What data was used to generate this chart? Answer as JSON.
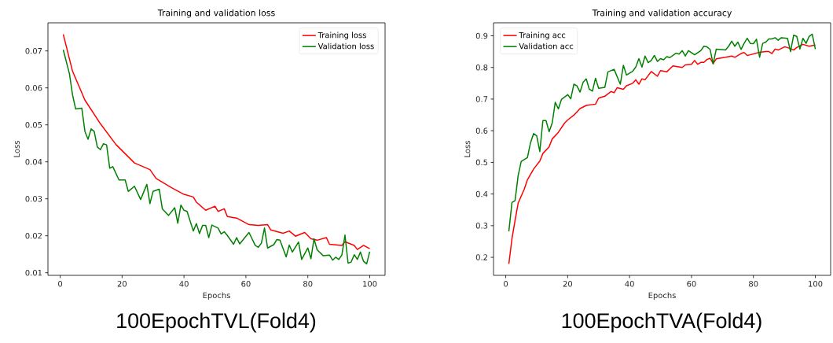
{
  "chart_data": [
    {
      "type": "line",
      "title": "Training and validation loss",
      "xlabel": "Epochs",
      "ylabel": "Loss",
      "legend": "top right",
      "xlim": [
        -3.95,
        104.95
      ],
      "ylim": [
        0.0093,
        0.0776
      ],
      "xticks": [
        0,
        20,
        40,
        60,
        80,
        100
      ],
      "yticks": [
        0.01,
        0.02,
        0.03,
        0.04,
        0.05,
        0.06,
        0.07
      ],
      "annotations": [
        "100EpochTVL(Fold4)"
      ],
      "series": [
        {
          "name": "Training loss",
          "color": "#ff0000",
          "x": [
            1,
            4,
            8,
            13,
            18,
            24,
            29,
            31,
            36,
            40,
            43,
            44,
            47,
            50,
            51,
            53,
            54,
            57,
            61,
            64,
            67,
            68,
            72,
            74,
            76,
            79,
            81,
            83,
            86,
            87,
            91,
            92,
            95,
            96,
            98,
            100
          ],
          "values": [
            0.0745,
            0.0645,
            0.0567,
            0.0503,
            0.0447,
            0.0397,
            0.0379,
            0.0355,
            0.033,
            0.0312,
            0.0305,
            0.0291,
            0.0269,
            0.028,
            0.0266,
            0.0273,
            0.0252,
            0.0248,
            0.023,
            0.0228,
            0.023,
            0.0216,
            0.0207,
            0.0213,
            0.0199,
            0.0209,
            0.0192,
            0.0188,
            0.0195,
            0.0177,
            0.0174,
            0.0184,
            0.0174,
            0.0163,
            0.0174,
            0.0165
          ]
        },
        {
          "name": "Validation loss",
          "color": "#008000",
          "x": [
            1,
            3,
            4,
            5,
            7,
            8,
            9,
            10,
            11,
            12,
            13,
            14,
            15,
            16,
            17,
            19,
            21,
            22,
            24,
            26,
            28,
            29,
            30,
            32,
            33,
            35,
            37,
            38,
            39,
            40,
            41,
            43,
            44,
            45,
            46,
            47,
            48,
            49,
            51,
            52,
            53,
            54,
            56,
            57,
            58,
            61,
            63,
            64,
            65,
            66,
            67,
            69,
            70,
            71,
            73,
            74,
            75,
            77,
            78,
            80,
            81,
            82,
            83,
            85,
            87,
            88,
            89,
            90,
            91,
            92,
            93,
            94,
            95,
            96,
            97,
            98,
            99,
            100
          ],
          "values": [
            0.0703,
            0.0638,
            0.0581,
            0.0543,
            0.0545,
            0.0482,
            0.0461,
            0.0489,
            0.0482,
            0.044,
            0.0433,
            0.0449,
            0.0446,
            0.0383,
            0.0387,
            0.0351,
            0.0351,
            0.032,
            0.0334,
            0.0298,
            0.0339,
            0.0287,
            0.032,
            0.0326,
            0.0273,
            0.0255,
            0.0276,
            0.0234,
            0.0283,
            0.0269,
            0.0266,
            0.0213,
            0.0233,
            0.0206,
            0.0228,
            0.0228,
            0.0195,
            0.0229,
            0.0221,
            0.0205,
            0.0211,
            0.0201,
            0.0177,
            0.0195,
            0.0178,
            0.0209,
            0.0174,
            0.0169,
            0.018,
            0.0221,
            0.0167,
            0.0176,
            0.019,
            0.0188,
            0.0143,
            0.0175,
            0.0156,
            0.0183,
            0.0136,
            0.0167,
            0.0138,
            0.0192,
            0.0162,
            0.0146,
            0.0148,
            0.0134,
            0.0142,
            0.0136,
            0.0148,
            0.0202,
            0.0126,
            0.0129,
            0.0149,
            0.0136,
            0.0156,
            0.0131,
            0.0124,
            0.0157
          ]
        }
      ]
    },
    {
      "type": "line",
      "title": "Training and validation accuracy",
      "xlabel": "Epochs",
      "ylabel": "Loss",
      "legend": "top left",
      "xlim": [
        -3.95,
        104.95
      ],
      "ylim": [
        0.143,
        0.941
      ],
      "xticks": [
        0,
        20,
        40,
        60,
        80,
        100
      ],
      "yticks": [
        0.2,
        0.3,
        0.4,
        0.5,
        0.6,
        0.7,
        0.8,
        0.9
      ],
      "annotations": [
        "100EpochTVA(Fold4)"
      ],
      "series": [
        {
          "name": "Training acc",
          "color": "#ff0000",
          "x": [
            1,
            2,
            3,
            4,
            6,
            7,
            9,
            11,
            12,
            14,
            15,
            17,
            19,
            20,
            22,
            24,
            26,
            29,
            30,
            32,
            34,
            35,
            36,
            38,
            39,
            41,
            42,
            43,
            44,
            45,
            47,
            49,
            50,
            52,
            54,
            57,
            58,
            60,
            61,
            62,
            63,
            64,
            65,
            66,
            67,
            68,
            71,
            73,
            74,
            76,
            77,
            78,
            79,
            82,
            84,
            85,
            86,
            87,
            88,
            90,
            91,
            93,
            94,
            96,
            98,
            100
          ],
          "values": [
            0.179,
            0.258,
            0.316,
            0.371,
            0.416,
            0.445,
            0.479,
            0.504,
            0.528,
            0.549,
            0.574,
            0.595,
            0.624,
            0.634,
            0.649,
            0.67,
            0.68,
            0.684,
            0.703,
            0.709,
            0.724,
            0.72,
            0.736,
            0.731,
            0.742,
            0.75,
            0.761,
            0.747,
            0.764,
            0.761,
            0.787,
            0.772,
            0.79,
            0.786,
            0.805,
            0.8,
            0.808,
            0.81,
            0.822,
            0.81,
            0.816,
            0.816,
            0.825,
            0.829,
            0.813,
            0.827,
            0.832,
            0.836,
            0.832,
            0.844,
            0.847,
            0.838,
            0.84,
            0.848,
            0.85,
            0.85,
            0.844,
            0.858,
            0.855,
            0.865,
            0.863,
            0.855,
            0.863,
            0.873,
            0.867,
            0.871
          ]
        },
        {
          "name": "Validation acc",
          "color": "#008000",
          "x": [
            1,
            2,
            3,
            4,
            5,
            7,
            8,
            9,
            10,
            11,
            12,
            13,
            14,
            15,
            16,
            17,
            18,
            20,
            21,
            22,
            23,
            24,
            25,
            26,
            27,
            28,
            29,
            30,
            32,
            33,
            35,
            37,
            38,
            39,
            41,
            42,
            43,
            44,
            45,
            46,
            47,
            48,
            49,
            50,
            51,
            52,
            53,
            55,
            56,
            57,
            58,
            59,
            61,
            63,
            64,
            65,
            66,
            67,
            68,
            71,
            72,
            73,
            74,
            75,
            76,
            77,
            78,
            79,
            80,
            81,
            82,
            83,
            84,
            85,
            86,
            87,
            88,
            89,
            91,
            92,
            93,
            94,
            95,
            96,
            97,
            98,
            99,
            100
          ],
          "values": [
            0.282,
            0.373,
            0.379,
            0.458,
            0.503,
            0.515,
            0.562,
            0.591,
            0.584,
            0.534,
            0.632,
            0.632,
            0.597,
            0.624,
            0.69,
            0.669,
            0.699,
            0.714,
            0.701,
            0.747,
            0.742,
            0.722,
            0.753,
            0.764,
            0.731,
            0.725,
            0.766,
            0.734,
            0.737,
            0.786,
            0.794,
            0.747,
            0.807,
            0.776,
            0.788,
            0.801,
            0.828,
            0.801,
            0.836,
            0.815,
            0.822,
            0.838,
            0.819,
            0.828,
            0.824,
            0.834,
            0.831,
            0.845,
            0.842,
            0.853,
            0.836,
            0.853,
            0.84,
            0.853,
            0.867,
            0.865,
            0.857,
            0.811,
            0.858,
            0.855,
            0.867,
            0.883,
            0.867,
            0.88,
            0.857,
            0.876,
            0.892,
            0.876,
            0.875,
            0.889,
            0.832,
            0.876,
            0.88,
            0.89,
            0.89,
            0.894,
            0.886,
            0.894,
            0.892,
            0.85,
            0.902,
            0.898,
            0.858,
            0.892,
            0.876,
            0.898,
            0.905,
            0.858
          ]
        }
      ]
    }
  ]
}
